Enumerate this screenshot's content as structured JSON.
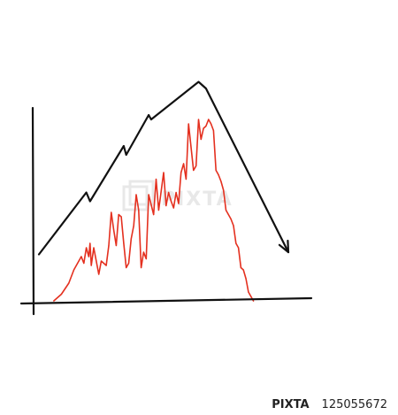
{
  "watermark": {
    "text": "PIXTA"
  },
  "footer": {
    "brand": "PIXTA",
    "image_number": "125055672"
  },
  "colors": {
    "axis": "#111111",
    "trend_line": "#111111",
    "series_line": "#e4301f",
    "watermark": "#d6d6d6"
  },
  "chart_data": {
    "type": "line",
    "title": "",
    "xlabel": "",
    "ylabel": "",
    "grid": false,
    "legend": "none",
    "xlim": [
      0,
      100
    ],
    "ylim": [
      0,
      100
    ],
    "series": [
      {
        "style": "trend-arrow",
        "x": [
          0,
          19,
          20.5,
          34,
          35,
          44,
          45,
          64,
          67,
          100
        ],
        "y": [
          21,
          49,
          45,
          70,
          66,
          84,
          82,
          99,
          96,
          22
        ]
      },
      {
        "style": "jagged",
        "x": [
          6,
          9,
          12,
          14,
          16,
          17,
          18,
          19,
          20,
          20.5,
          21,
          22,
          24,
          25,
          27,
          28,
          29,
          30,
          31,
          32,
          33,
          34,
          35,
          36,
          37,
          38,
          39,
          40,
          41,
          42,
          43,
          44,
          46,
          47,
          48,
          50,
          51,
          52,
          53,
          54,
          55,
          56,
          57,
          58,
          59,
          60,
          62,
          63,
          64,
          65,
          66,
          67,
          68,
          69,
          70,
          71,
          72,
          73,
          74,
          75,
          76,
          77,
          78,
          79,
          80,
          81,
          82,
          83,
          84,
          85,
          86
        ],
        "y": [
          0,
          3,
          8,
          14,
          18,
          20,
          17,
          24,
          20,
          26,
          16,
          24,
          12,
          18,
          16,
          25,
          40,
          32,
          25,
          39,
          38,
          26,
          15,
          17,
          28,
          34,
          48,
          41,
          15,
          22,
          19,
          48,
          39,
          55,
          41,
          58,
          43,
          49,
          45,
          42,
          49,
          44,
          58,
          62,
          55,
          80,
          59,
          61,
          82,
          73,
          78,
          79,
          82,
          80,
          77,
          59,
          57,
          54,
          50,
          41,
          39,
          37,
          34,
          26,
          24,
          15,
          14,
          10,
          4,
          2,
          0
        ]
      }
    ]
  }
}
